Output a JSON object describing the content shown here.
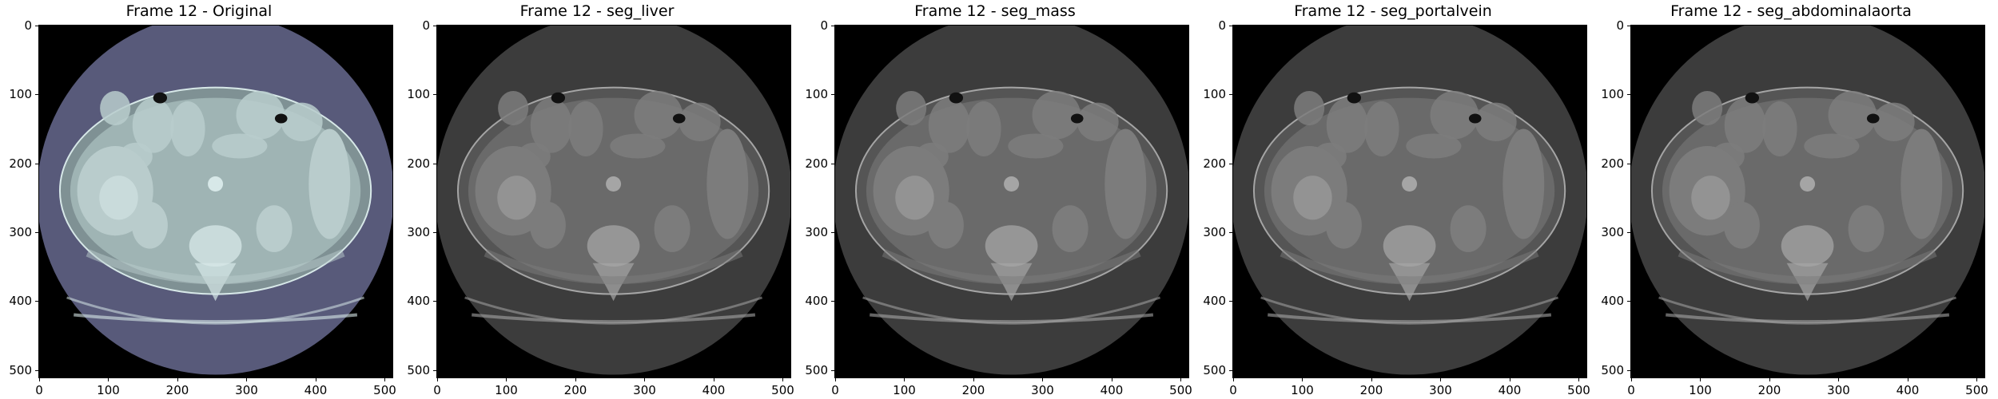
{
  "figure": {
    "panels": [
      {
        "title": "Frame 12 - Original",
        "colormap": "bone"
      },
      {
        "title": "Frame 12 - seg_liver",
        "colormap": "gray"
      },
      {
        "title": "Frame 12 - seg_mass",
        "colormap": "gray"
      },
      {
        "title": "Frame 12 - seg_portalvein",
        "colormap": "gray"
      },
      {
        "title": "Frame 12 - seg_abdominalaorta",
        "colormap": "gray"
      }
    ],
    "x_ticks": [
      "0",
      "100",
      "200",
      "300",
      "400",
      "500"
    ],
    "y_ticks": [
      "0",
      "100",
      "200",
      "300",
      "400",
      "500"
    ],
    "axis_range": [
      0,
      511
    ]
  },
  "colors": {
    "bone_circle": "#585a7a",
    "bone_body": "#9fb4b4",
    "bone_bright": "#d7e8e8",
    "gray_circle": "#3c3c3c",
    "gray_body": "#6a6a6a",
    "gray_bright": "#a5a5a5"
  }
}
